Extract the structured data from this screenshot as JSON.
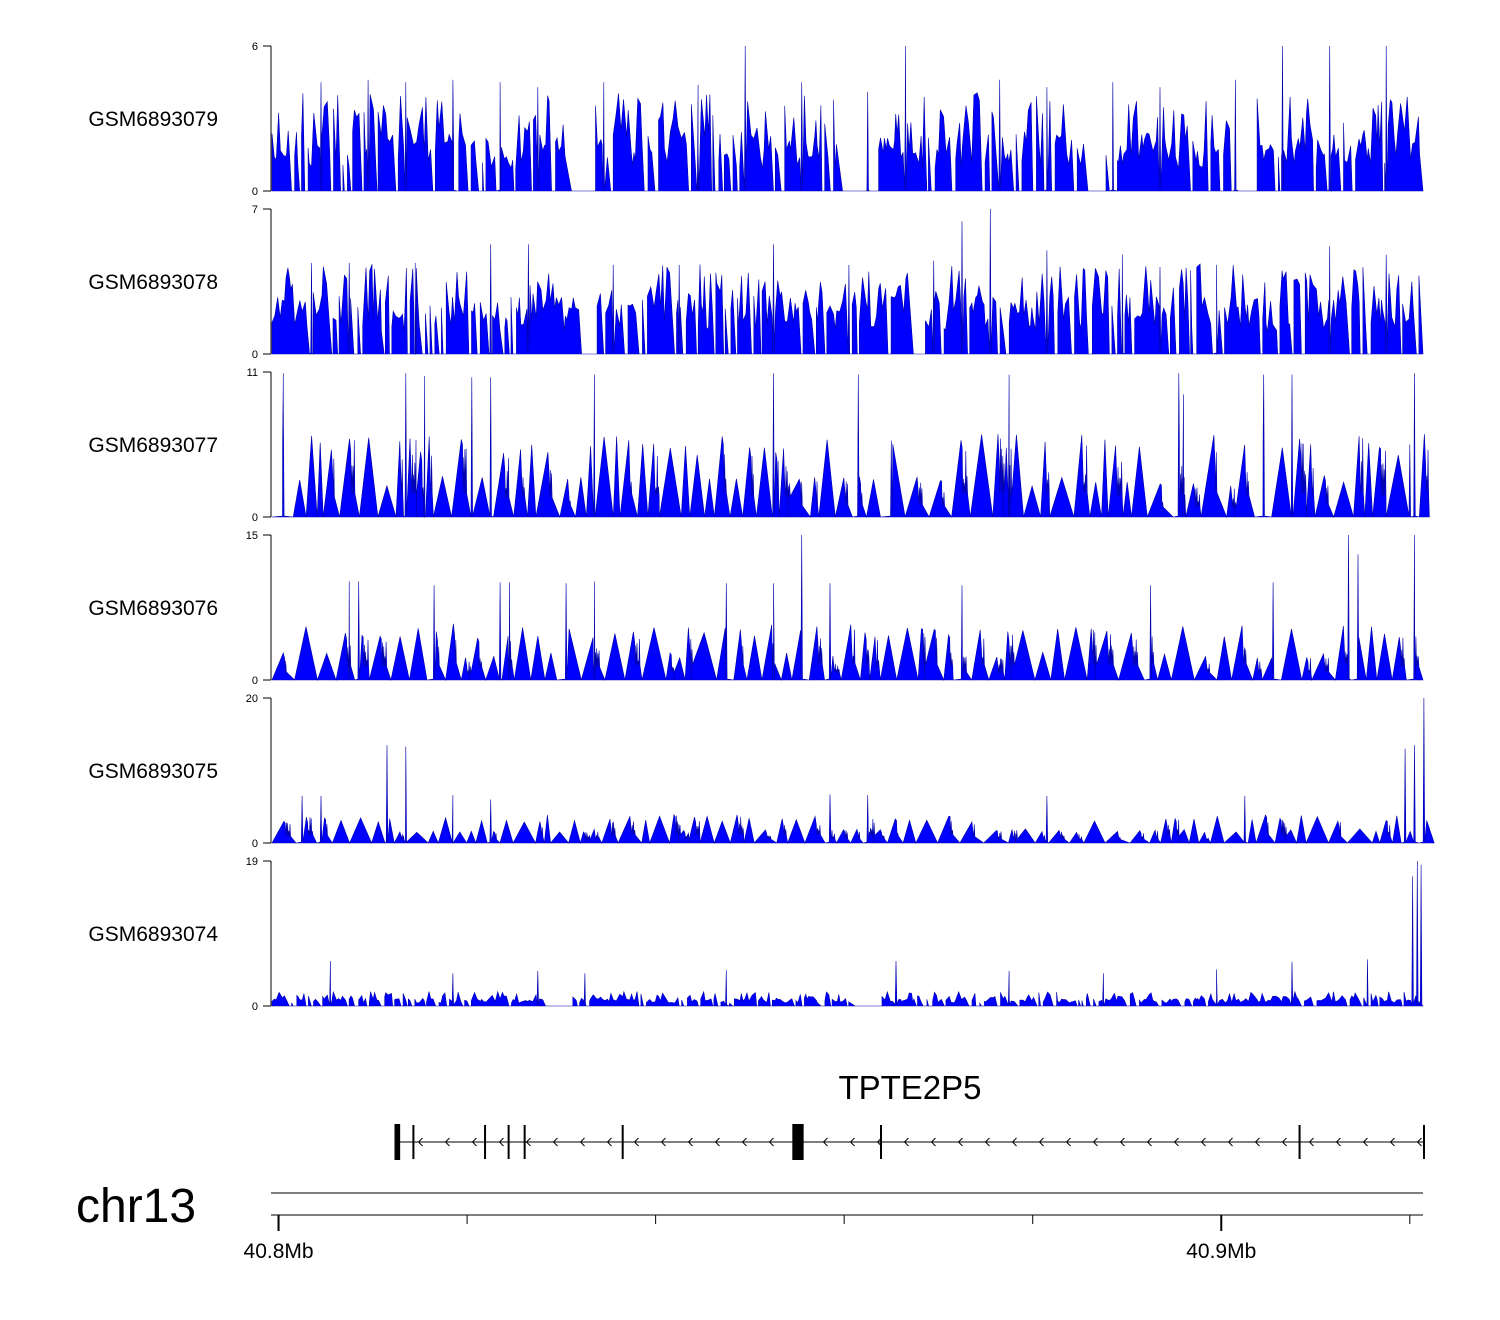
{
  "chart_data": {
    "type": "area",
    "title": "",
    "chromosome": "chr13",
    "x_range_mb": [
      40.7992,
      40.9214
    ],
    "x_tick_labels": [
      {
        "mb": 40.8,
        "label": "40.8Mb"
      },
      {
        "mb": 40.9,
        "label": "40.9Mb"
      }
    ],
    "x_minor_ticks_mb": [
      40.82,
      40.84,
      40.86,
      40.88,
      40.92
    ],
    "tracks": [
      {
        "name": "GSM6893079",
        "ymax": "6",
        "ymin": "0",
        "ymax_val": 6,
        "fill": "#0000ff",
        "stroke": "#0000aa",
        "peaks": [
          [
            40.8045,
            4.5
          ],
          [
            40.8095,
            4.6
          ],
          [
            40.8135,
            4.5
          ],
          [
            40.8185,
            4.6
          ],
          [
            40.8235,
            4.5
          ],
          [
            40.8275,
            4.3
          ],
          [
            40.8345,
            4.5
          ],
          [
            40.8445,
            4.4
          ],
          [
            40.8495,
            6.0
          ],
          [
            40.8555,
            4.5
          ],
          [
            40.8625,
            4.1
          ],
          [
            40.8665,
            6.0
          ],
          [
            40.8765,
            4.6
          ],
          [
            40.8815,
            4.3
          ],
          [
            40.8885,
            4.5
          ],
          [
            40.8935,
            4.3
          ],
          [
            40.9015,
            4.6
          ],
          [
            40.9065,
            6.0
          ],
          [
            40.9115,
            6.0
          ],
          [
            40.9175,
            6.0
          ]
        ],
        "gaps": [
          [
            40.8305,
            40.8335
          ],
          [
            40.8595,
            40.8635
          ],
          [
            40.8855,
            40.8875
          ],
          [
            40.9012,
            40.9035
          ]
        ]
      },
      {
        "name": "GSM6893078",
        "ymax": "7",
        "ymin": "0",
        "ymax_val": 7,
        "fill": "#0000ff",
        "stroke": "#0000aa",
        "peaks": [
          [
            40.8035,
            4.4
          ],
          [
            40.8075,
            4.4
          ],
          [
            40.8145,
            4.4
          ],
          [
            40.8225,
            5.3
          ],
          [
            40.8265,
            5.3
          ],
          [
            40.8355,
            4.3
          ],
          [
            40.8425,
            4.3
          ],
          [
            40.8525,
            5.3
          ],
          [
            40.8605,
            4.3
          ],
          [
            40.8695,
            4.5
          ],
          [
            40.8725,
            6.4
          ],
          [
            40.8755,
            7.0
          ],
          [
            40.8815,
            5.0
          ],
          [
            40.8895,
            4.8
          ],
          [
            40.8935,
            4.2
          ],
          [
            40.8995,
            4.3
          ],
          [
            40.9115,
            5.2
          ],
          [
            40.9175,
            4.8
          ]
        ],
        "gaps": [
          [
            40.832,
            40.8335
          ],
          [
            40.8668,
            40.8685
          ]
        ]
      },
      {
        "name": "GSM6893077",
        "ymax": "11",
        "ymin": "0",
        "ymax_val": 11,
        "fill": "#0000ff",
        "stroke": "#0000aa",
        "peaks": [
          [
            40.8005,
            10.9
          ],
          [
            40.8135,
            10.9
          ],
          [
            40.8155,
            10.7
          ],
          [
            40.8205,
            10.6
          ],
          [
            40.8225,
            10.6
          ],
          [
            40.8335,
            10.8
          ],
          [
            40.8525,
            10.9
          ],
          [
            40.8615,
            10.8
          ],
          [
            40.8775,
            10.8
          ],
          [
            40.8955,
            10.9
          ],
          [
            40.9045,
            10.8
          ],
          [
            40.9075,
            10.8
          ],
          [
            40.9205,
            10.9
          ],
          [
            40.8005,
            9.0
          ],
          [
            40.865,
            5.8
          ],
          [
            40.896,
            9.3
          ],
          [
            40.92,
            5.5
          ]
        ],
        "gaps": []
      },
      {
        "name": "GSM6893076",
        "ymax": "15",
        "ymin": "0",
        "ymax_val": 15,
        "fill": "#0000ff",
        "stroke": "#0000aa",
        "peaks": [
          [
            40.8075,
            10.2
          ],
          [
            40.8085,
            10.2
          ],
          [
            40.8165,
            9.8
          ],
          [
            40.8235,
            10.1
          ],
          [
            40.8245,
            10.1
          ],
          [
            40.8305,
            10.0
          ],
          [
            40.8335,
            10.2
          ],
          [
            40.8475,
            10.0
          ],
          [
            40.8525,
            10.0
          ],
          [
            40.8555,
            15.0
          ],
          [
            40.8585,
            10.0
          ],
          [
            40.8725,
            9.8
          ],
          [
            40.8925,
            9.8
          ],
          [
            40.9055,
            10.1
          ],
          [
            40.9135,
            15.0
          ],
          [
            40.9145,
            13.0
          ],
          [
            40.9205,
            15.0
          ]
        ],
        "gaps": [
          [
            40.7992,
            40.8005
          ]
        ]
      },
      {
        "name": "GSM6893075",
        "ymax": "20",
        "ymin": "0",
        "ymax_val": 20,
        "fill": "#0000ff",
        "stroke": "#0000aa",
        "peaks": [
          [
            40.8025,
            6.5
          ],
          [
            40.8045,
            6.5
          ],
          [
            40.8115,
            13.5
          ],
          [
            40.8135,
            13.3
          ],
          [
            40.8185,
            6.6
          ],
          [
            40.8225,
            6.0
          ],
          [
            40.8585,
            6.7
          ],
          [
            40.8625,
            6.6
          ],
          [
            40.8815,
            6.5
          ],
          [
            40.9025,
            6.5
          ],
          [
            40.9215,
            20.0
          ],
          [
            40.9195,
            13.0
          ],
          [
            40.9205,
            13.5
          ]
        ],
        "gaps": []
      },
      {
        "name": "GSM6893074",
        "ymax": "19",
        "ymin": "0",
        "ymax_val": 19,
        "fill": "#0000ff",
        "stroke": "#0000aa",
        "peaks": [
          [
            40.8055,
            5.9
          ],
          [
            40.8185,
            4.3
          ],
          [
            40.8275,
            4.6
          ],
          [
            40.8325,
            4.3
          ],
          [
            40.8475,
            4.7
          ],
          [
            40.8655,
            5.9
          ],
          [
            40.8775,
            4.6
          ],
          [
            40.8875,
            4.3
          ],
          [
            40.8995,
            4.8
          ],
          [
            40.9075,
            5.8
          ],
          [
            40.9155,
            6.1
          ],
          [
            40.9208,
            19.0
          ],
          [
            40.9212,
            18.5
          ],
          [
            40.9203,
            17.0
          ]
        ],
        "gaps": [
          [
            40.8285,
            40.831
          ],
          [
            40.8605,
            40.864
          ]
        ]
      }
    ],
    "gene": {
      "name": "TPTE2P5",
      "strand": "-",
      "start_mb": 40.8123,
      "end_mb": 40.9214,
      "exons_mb": [
        [
          40.8123,
          40.8129
        ],
        [
          40.8142,
          40.8144
        ],
        [
          40.8218,
          40.8219
        ],
        [
          40.8243,
          40.8244
        ],
        [
          40.826,
          40.8262
        ],
        [
          40.8364,
          40.8366
        ],
        [
          40.8545,
          40.8557
        ],
        [
          40.8638,
          40.8639
        ],
        [
          40.9082,
          40.9083
        ],
        [
          40.9214,
          40.9215
        ]
      ]
    }
  }
}
